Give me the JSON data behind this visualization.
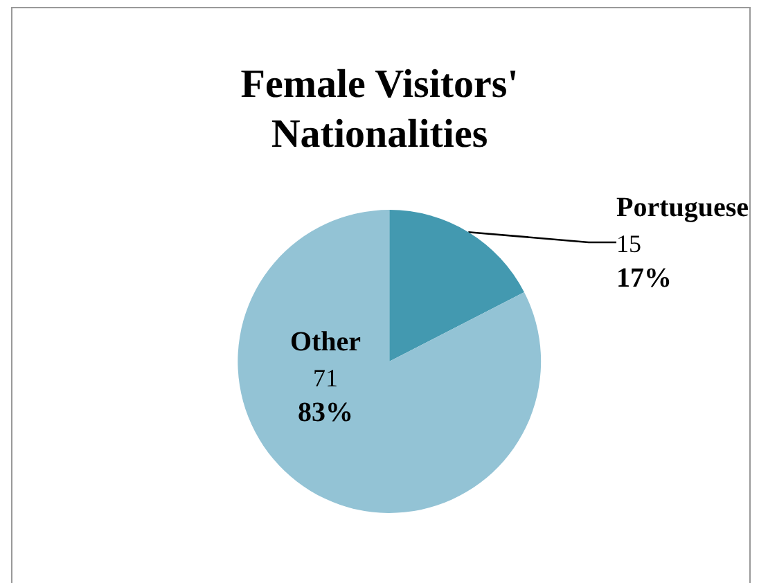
{
  "chart_data": {
    "type": "pie",
    "title": "Female Visitors'\nNationalities",
    "categories": [
      "Portuguese",
      "Other"
    ],
    "values": [
      15,
      71
    ],
    "colors": [
      "#4399b0",
      "#93c3d5"
    ],
    "value_labels": [
      "15\n17%",
      "71\n83%"
    ],
    "legend": false
  }
}
